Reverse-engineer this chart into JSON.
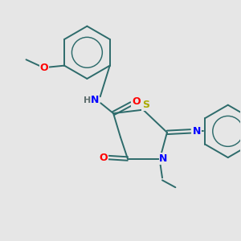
{
  "background_color": "#e6e6e6",
  "bond_color": "#2d6b6b",
  "atom_colors": {
    "N": "#0000ff",
    "O": "#ff0000",
    "S": "#aaaa00",
    "H": "#607070",
    "C": "#2d6b6b"
  },
  "bond_width": 1.4,
  "font_size_atom": 9,
  "font_size_h": 8
}
